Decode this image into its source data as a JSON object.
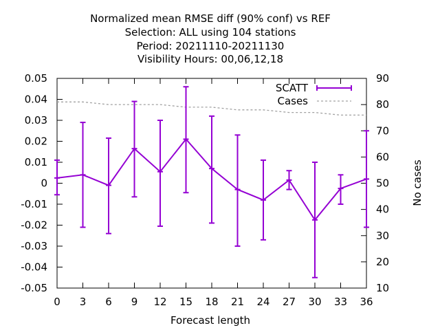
{
  "chart_data": {
    "type": "line",
    "title_lines": [
      "Normalized mean RMSE diff (90% conf) vs REF",
      "Selection: ALL using   104 stations",
      "Period: 20211110-20211130",
      "Visibility   Hours:  00,06,12,18"
    ],
    "xlabel": "Forecast length",
    "ylabel_right": "No cases",
    "x": [
      0,
      3,
      6,
      9,
      12,
      15,
      18,
      21,
      24,
      27,
      30,
      33,
      36
    ],
    "x_ticks": [
      "0",
      "3",
      "6",
      "9",
      "12",
      "15",
      "18",
      "21",
      "24",
      "27",
      "30",
      "33",
      "36"
    ],
    "xlim": [
      0,
      36
    ],
    "ylim": [
      -0.05,
      0.05
    ],
    "y_ticks": [
      "0.05",
      "0.04",
      "0.03",
      "0.02",
      "0.01",
      "0",
      "-0.01",
      "-0.02",
      "-0.03",
      "-0.04",
      "-0.05"
    ],
    "y2lim": [
      10,
      90
    ],
    "y2_ticks": [
      "90",
      "80",
      "70",
      "60",
      "50",
      "40",
      "30",
      "20",
      "10"
    ],
    "legend_position": "top-right",
    "grid": false,
    "series": [
      {
        "name": "SCATT",
        "color": "#9400d3",
        "values": [
          0.0025,
          0.004,
          -0.001,
          0.0165,
          0.0055,
          0.021,
          0.007,
          -0.003,
          -0.008,
          0.0015,
          -0.0175,
          -0.0025,
          0.002
        ],
        "err_low": [
          -0.0055,
          -0.021,
          -0.024,
          -0.0065,
          -0.0205,
          -0.0045,
          -0.019,
          -0.03,
          -0.027,
          -0.003,
          -0.045,
          -0.01,
          -0.021
        ],
        "err_high": [
          0.011,
          0.029,
          0.0215,
          0.039,
          0.03,
          0.046,
          0.032,
          0.023,
          0.011,
          0.006,
          0.01,
          0.004,
          0.025
        ]
      },
      {
        "name": "Cases",
        "color": "#a0a0a0",
        "axis": "right",
        "values": [
          81,
          81,
          80,
          80,
          80,
          79,
          79,
          78,
          78,
          77,
          77,
          76,
          76
        ]
      }
    ]
  }
}
